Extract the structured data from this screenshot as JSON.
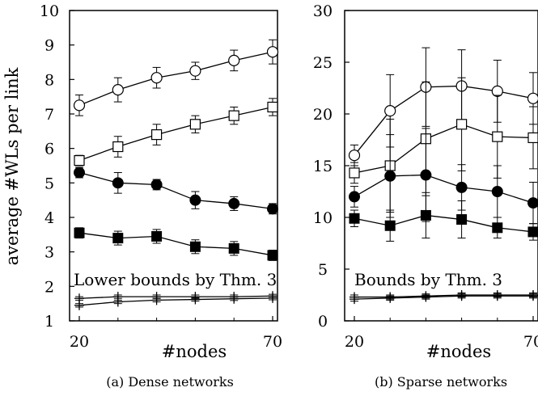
{
  "ylabel": "average #WLs per link",
  "chart_data": [
    {
      "type": "line",
      "caption": "(a) Dense networks",
      "xlabel": "#nodes",
      "xlim": [
        20,
        70
      ],
      "ylim": [
        1,
        10
      ],
      "x_ticks": [
        "20",
        "70"
      ],
      "y_ticks": [
        "1",
        "2",
        "3",
        "4",
        "5",
        "6",
        "7",
        "8",
        "9",
        "10"
      ],
      "annotation": "Lower bounds by Thm. 3",
      "x": [
        20,
        30,
        40,
        50,
        60,
        70
      ],
      "series": [
        {
          "marker": "circle-open",
          "values": [
            7.25,
            7.7,
            8.05,
            8.25,
            8.55,
            8.8
          ],
          "err": [
            0.3,
            0.35,
            0.3,
            0.25,
            0.3,
            0.35
          ]
        },
        {
          "marker": "square-open",
          "values": [
            5.65,
            6.05,
            6.4,
            6.7,
            6.95,
            7.2
          ],
          "err": [
            0.15,
            0.3,
            0.3,
            0.25,
            0.25,
            0.25
          ]
        },
        {
          "marker": "circle-filled",
          "values": [
            5.3,
            5.0,
            4.95,
            4.5,
            4.4,
            4.25
          ],
          "err": [
            0.15,
            0.3,
            0.15,
            0.25,
            0.2,
            0.15
          ]
        },
        {
          "marker": "square-filled",
          "values": [
            3.55,
            3.4,
            3.45,
            3.15,
            3.1,
            2.9
          ],
          "err": [
            0.15,
            0.2,
            0.2,
            0.2,
            0.2,
            0.15
          ]
        },
        {
          "marker": "plus",
          "values": [
            1.65,
            1.7,
            1.7,
            1.7,
            1.7,
            1.72
          ],
          "err": [
            0.05,
            0.05,
            0.05,
            0.05,
            0.05,
            0.05
          ]
        },
        {
          "marker": "plus",
          "values": [
            1.45,
            1.55,
            1.6,
            1.62,
            1.64,
            1.66
          ],
          "err": [
            0.05,
            0.05,
            0.05,
            0.05,
            0.05,
            0.05
          ]
        }
      ]
    },
    {
      "type": "line",
      "caption": "(b) Sparse networks",
      "xlabel": "#nodes",
      "xlim": [
        20,
        70
      ],
      "ylim": [
        0,
        30
      ],
      "x_ticks": [
        "20",
        "70"
      ],
      "y_ticks": [
        "0",
        "5",
        "10",
        "15",
        "20",
        "25",
        "30"
      ],
      "annotation": "Bounds by Thm. 3",
      "x": [
        20,
        30,
        40,
        50,
        60,
        70
      ],
      "series": [
        {
          "marker": "circle-open",
          "values": [
            16.0,
            20.3,
            22.6,
            22.7,
            22.2,
            21.5
          ],
          "err": [
            1.0,
            3.5,
            3.8,
            3.5,
            3.0,
            2.5
          ]
        },
        {
          "marker": "square-open",
          "values": [
            14.3,
            15.0,
            17.6,
            19.0,
            17.8,
            17.7
          ],
          "err": [
            1.0,
            4.5,
            5.5,
            4.5,
            4.0,
            3.0
          ]
        },
        {
          "marker": "circle-filled",
          "values": [
            12.0,
            14.0,
            14.1,
            12.9,
            12.5,
            11.4
          ],
          "err": [
            1.0,
            4.0,
            4.5,
            2.2,
            2.5,
            2.0
          ]
        },
        {
          "marker": "square-filled",
          "values": [
            9.9,
            9.2,
            10.2,
            9.8,
            9.0,
            8.6
          ],
          "err": [
            0.8,
            1.5,
            2.2,
            1.8,
            1.0,
            0.8
          ]
        },
        {
          "marker": "plus",
          "values": [
            2.3,
            2.3,
            2.4,
            2.5,
            2.5,
            2.5
          ],
          "err": [
            0.2,
            0.2,
            0.2,
            0.2,
            0.2,
            0.2
          ]
        },
        {
          "marker": "plus",
          "values": [
            2.1,
            2.2,
            2.3,
            2.4,
            2.4,
            2.4
          ],
          "err": [
            0.2,
            0.2,
            0.2,
            0.2,
            0.2,
            0.2
          ]
        }
      ]
    }
  ]
}
